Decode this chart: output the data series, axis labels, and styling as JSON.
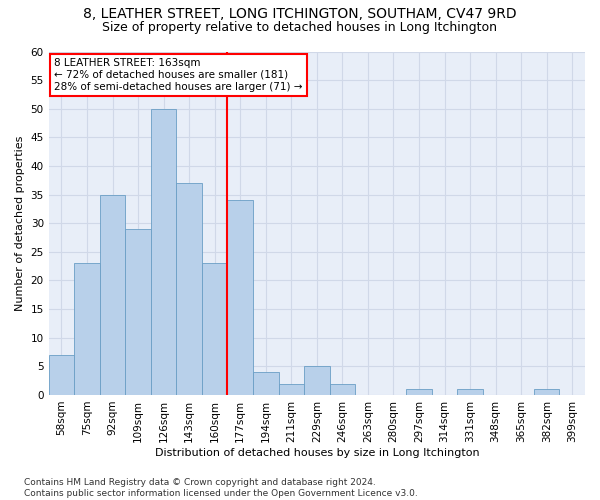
{
  "title": "8, LEATHER STREET, LONG ITCHINGTON, SOUTHAM, CV47 9RD",
  "subtitle": "Size of property relative to detached houses in Long Itchington",
  "xlabel": "Distribution of detached houses by size in Long Itchington",
  "ylabel": "Number of detached properties",
  "bar_labels": [
    "58sqm",
    "75sqm",
    "92sqm",
    "109sqm",
    "126sqm",
    "143sqm",
    "160sqm",
    "177sqm",
    "194sqm",
    "211sqm",
    "229sqm",
    "246sqm",
    "263sqm",
    "280sqm",
    "297sqm",
    "314sqm",
    "331sqm",
    "348sqm",
    "365sqm",
    "382sqm",
    "399sqm"
  ],
  "bar_values": [
    7,
    23,
    35,
    29,
    50,
    37,
    23,
    34,
    4,
    2,
    5,
    2,
    0,
    0,
    1,
    0,
    1,
    0,
    0,
    1,
    0
  ],
  "bar_color": "#b8d0ea",
  "bar_edge_color": "#6a9ec5",
  "ref_line_color": "red",
  "ref_line_index": 6.5,
  "annotation_line1": "8 LEATHER STREET: 163sqm",
  "annotation_line2": "← 72% of detached houses are smaller (181)",
  "annotation_line3": "28% of semi-detached houses are larger (71) →",
  "annotation_box_edge_color": "red",
  "ylim": [
    0,
    60
  ],
  "yticks": [
    0,
    5,
    10,
    15,
    20,
    25,
    30,
    35,
    40,
    45,
    50,
    55,
    60
  ],
  "background_color": "#e8eef8",
  "grid_color": "#d0d8e8",
  "title_fontsize": 10,
  "subtitle_fontsize": 9,
  "axis_label_fontsize": 8,
  "tick_fontsize": 7.5,
  "annotation_fontsize": 7.5,
  "footnote_fontsize": 6.5,
  "footnote": "Contains HM Land Registry data © Crown copyright and database right 2024.\nContains public sector information licensed under the Open Government Licence v3.0."
}
